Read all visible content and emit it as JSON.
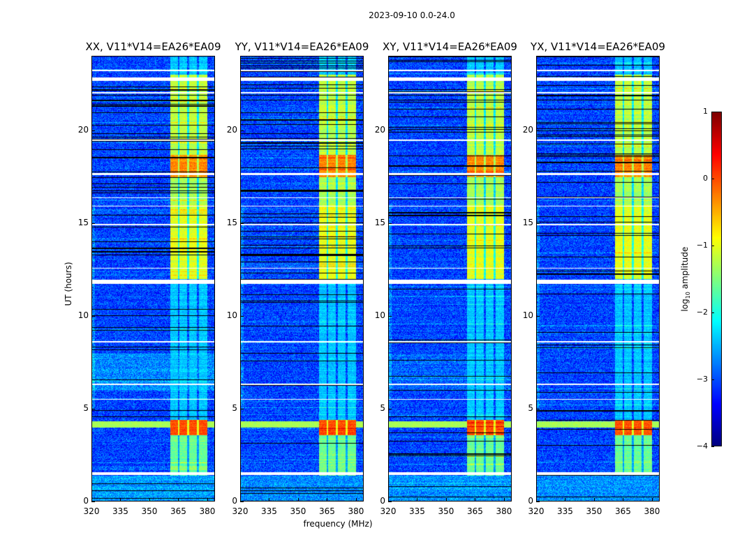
{
  "chart_data": {
    "type": "heatmap",
    "suptitle": "2023-09-10 0.0-24.0",
    "xlabel": "frequency (MHz)",
    "ylabel": "UT (hours)",
    "xlim": [
      320,
      384
    ],
    "ylim": [
      0,
      24
    ],
    "xticks": [
      "320",
      "335",
      "350",
      "365",
      "380"
    ],
    "xtick_values": [
      320,
      335,
      350,
      365,
      380
    ],
    "yticks": [
      "0",
      "5",
      "10",
      "15",
      "20"
    ],
    "ytick_values": [
      0,
      5,
      10,
      15,
      20
    ],
    "panels": [
      {
        "title": "XX, V11*V14=EA26*EA09",
        "seed": 11,
        "low_band_boost": 0.35
      },
      {
        "title": "YY, V11*V14=EA26*EA09",
        "seed": 23,
        "low_band_boost": 0.0
      },
      {
        "title": "XY, V11*V14=EA26*EA09",
        "seed": 37,
        "low_band_boost": 0.15
      },
      {
        "title": "YX, V11*V14=EA26*EA09",
        "seed": 53,
        "low_band_boost": 0.0
      }
    ],
    "rfi_band_mhz": [
      360.5,
      380
    ],
    "rfi_channel_gaps_mhz": [
      365,
      370,
      375
    ],
    "rfi_segments_hours": [
      {
        "from": 1.4,
        "to": 3.6,
        "level": -1.6
      },
      {
        "from": 3.6,
        "to": 4.4,
        "level": 0.0
      },
      {
        "from": 4.4,
        "to": 12.0,
        "level": -2.4
      },
      {
        "from": 12.0,
        "to": 16.0,
        "level": -1.0
      },
      {
        "from": 16.0,
        "to": 17.5,
        "level": -1.3
      },
      {
        "from": 17.5,
        "to": 18.7,
        "level": -0.3
      },
      {
        "from": 18.7,
        "to": 23.0,
        "level": -1.2
      },
      {
        "from": 23.0,
        "to": 24.0,
        "level": -2.4
      }
    ],
    "flagged_hours": [
      [
        1.45,
        1.6
      ],
      [
        11.75,
        11.95
      ],
      [
        22.65,
        22.85
      ],
      [
        12.55,
        12.6
      ],
      [
        15.9,
        15.95
      ],
      [
        17.6,
        17.7
      ],
      [
        19.45,
        19.5
      ],
      [
        23.2,
        23.25
      ],
      [
        14.9,
        14.95
      ],
      [
        16.35,
        16.4
      ],
      [
        22.0,
        22.05
      ],
      [
        8.6,
        8.65
      ],
      [
        6.3,
        6.35
      ],
      [
        5.5,
        5.55
      ]
    ],
    "colorbar": {
      "label": "log10 amplitude",
      "label_main": "log",
      "label_sub": "10",
      "label_rest": " amplitude",
      "range": [
        -4,
        1
      ],
      "ticks": [
        "1",
        "0",
        "−1",
        "−2",
        "−3",
        "−4"
      ],
      "tick_values": [
        1,
        0,
        -1,
        -2,
        -3,
        -4
      ],
      "colormap": "jet"
    }
  }
}
